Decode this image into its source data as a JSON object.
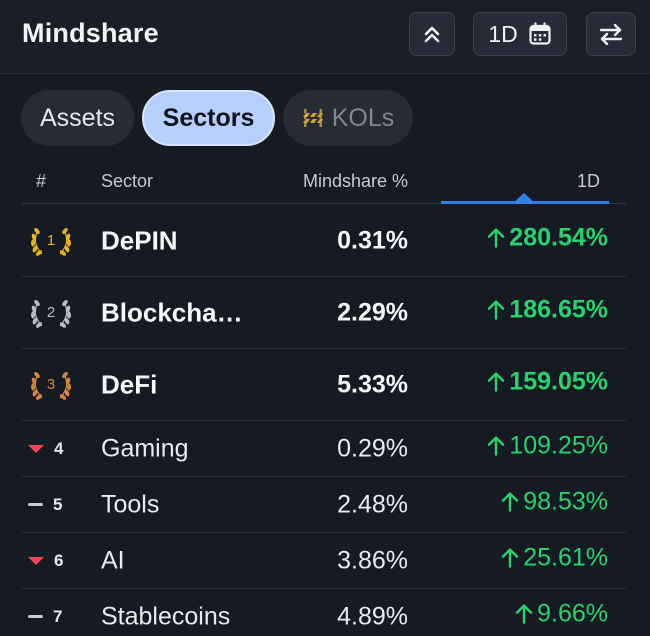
{
  "header": {
    "title": "Mindshare",
    "period_label": "1D"
  },
  "tabs": [
    {
      "label": "Assets",
      "active": false
    },
    {
      "label": "Sectors",
      "active": true
    },
    {
      "label": "KOLs",
      "active": false
    }
  ],
  "table": {
    "columns": {
      "rank": "#",
      "sector": "Sector",
      "mindshare": "Mindshare %",
      "change": "1D"
    },
    "rows": [
      {
        "rank": "1",
        "trend": "laurel-gold",
        "sector": "DePIN",
        "mindshare": "0.31%",
        "change": "280.54%"
      },
      {
        "rank": "2",
        "trend": "laurel-silver",
        "sector": "Blockcha…",
        "mindshare": "2.29%",
        "change": "186.65%"
      },
      {
        "rank": "3",
        "trend": "laurel-bronze",
        "sector": "DeFi",
        "mindshare": "5.33%",
        "change": "159.05%"
      },
      {
        "rank": "4",
        "trend": "down",
        "sector": "Gaming",
        "mindshare": "0.29%",
        "change": "109.25%"
      },
      {
        "rank": "5",
        "trend": "flat",
        "sector": "Tools",
        "mindshare": "2.48%",
        "change": "98.53%"
      },
      {
        "rank": "6",
        "trend": "down",
        "sector": "AI",
        "mindshare": "3.86%",
        "change": "25.61%"
      },
      {
        "rank": "7",
        "trend": "flat",
        "sector": "Stablecoins",
        "mindshare": "4.89%",
        "change": "9.66%"
      }
    ]
  },
  "colors": {
    "background": "#161a22",
    "active_tab": "#b6cffc",
    "positive": "#26d36c",
    "negative": "#f0474f",
    "sort_accent": "#2f7fe0",
    "gold": "#e8b51c",
    "silver": "#b9bcc4",
    "bronze": "#d4873a"
  }
}
